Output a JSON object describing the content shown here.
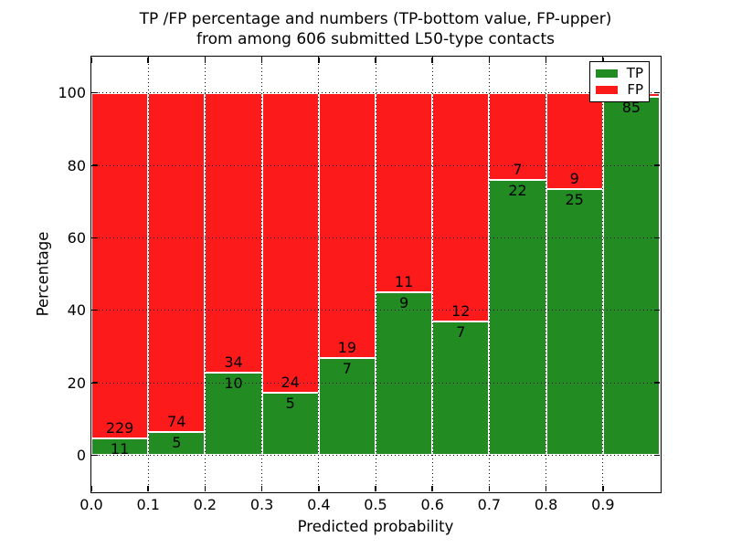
{
  "title": {
    "line1": "TP /FP percentage and numbers (TP-bottom value, FP-upper)",
    "line2": "from among 606 submitted L50-type contacts"
  },
  "chart_data": {
    "type": "bar",
    "variant": "stacked-percentage-histogram",
    "title": "TP /FP percentage and numbers (TP-bottom value, FP-upper)\nfrom among 606 submitted L50-type contacts",
    "xlabel": "Predicted probability",
    "ylabel": "Percentage",
    "xlim": [
      0.0,
      1.0
    ],
    "ylim": [
      -10,
      110
    ],
    "x_tick_values": [
      0.0,
      0.1,
      0.2,
      0.3,
      0.4,
      0.5,
      0.6,
      0.7,
      0.8,
      0.9
    ],
    "x_tick_labels": [
      "0.0",
      "0.1",
      "0.2",
      "0.3",
      "0.4",
      "0.5",
      "0.6",
      "0.7",
      "0.8",
      "0.9"
    ],
    "x_grid_values": [
      0.1,
      0.2,
      0.3,
      0.4,
      0.5,
      0.6,
      0.7,
      0.8,
      0.9
    ],
    "y_tick_values": [
      0,
      20,
      40,
      60,
      80,
      100
    ],
    "y_tick_labels": [
      "0",
      "20",
      "40",
      "60",
      "80",
      "100"
    ],
    "grid_style": "dotted",
    "grid_color": "#000000",
    "bar_edge_color": "#ffffff",
    "bins": [
      [
        0.0,
        0.1
      ],
      [
        0.1,
        0.2
      ],
      [
        0.2,
        0.3
      ],
      [
        0.3,
        0.4
      ],
      [
        0.4,
        0.5
      ],
      [
        0.5,
        0.6
      ],
      [
        0.6,
        0.7
      ],
      [
        0.7,
        0.8
      ],
      [
        0.8,
        0.9
      ],
      [
        0.9,
        1.0
      ]
    ],
    "series": [
      {
        "name": "TP",
        "color": "#228b22",
        "counts": [
          11,
          5,
          10,
          5,
          7,
          9,
          7,
          22,
          25,
          85
        ]
      },
      {
        "name": "FP",
        "color": "#fc1a1a",
        "counts": [
          229,
          74,
          34,
          24,
          19,
          11,
          12,
          7,
          9,
          1
        ]
      }
    ],
    "tp_percent_heights": [
      4.58,
      6.33,
      22.73,
      17.24,
      26.92,
      45.0,
      36.84,
      75.86,
      73.53,
      98.84
    ],
    "count_labels": {
      "tp": [
        "11",
        "5",
        "10",
        "5",
        "7",
        "9",
        "7",
        "22",
        "25",
        "85"
      ],
      "fp": [
        "229",
        "74",
        "34",
        "24",
        "19",
        "11",
        "12",
        "7",
        "9",
        ""
      ]
    },
    "legend": {
      "labels": [
        "TP",
        "FP"
      ],
      "position": "upper-right"
    },
    "total": 606
  }
}
